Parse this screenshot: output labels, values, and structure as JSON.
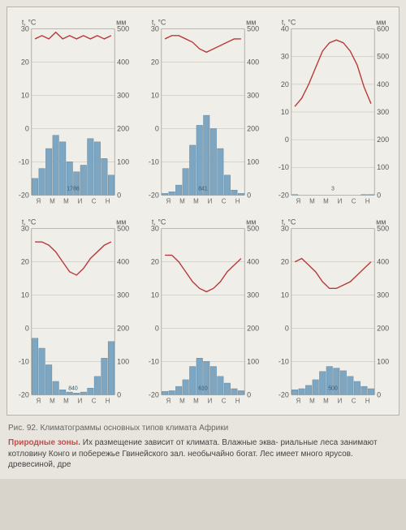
{
  "figure": {
    "caption": "Рис. 92. Климатограммы основных типов климата Африки",
    "body_title": "Природные зоны.",
    "body_text": " Их размещение зависит от климата. Влажные эква-  риальные леса занимают котловину Конго и побережье Гвинейского зал.                                  необычайно богат. Лес имеет много ярусов.                                                                                         древесиной, дре",
    "bg": "#f0eee8",
    "line_color": "#b83a3a",
    "bar_color": "#7da6c2",
    "bar_stroke": "#5a7a90",
    "grid_color": "#b0aca0",
    "axis_color": "#888478",
    "months": [
      "Я",
      "М",
      "М",
      "И",
      "С",
      "Н"
    ],
    "charts": [
      {
        "t_label": "t, °C",
        "mm_label": "мм",
        "t_ticks": [
          -20,
          -10,
          0,
          10,
          20,
          30
        ],
        "mm_ticks": [
          0,
          100,
          200,
          300,
          400,
          500
        ],
        "temp": [
          27,
          28,
          27,
          29,
          27,
          28,
          27,
          28,
          27,
          28,
          27,
          28
        ],
        "precip": [
          50,
          80,
          140,
          180,
          160,
          100,
          70,
          90,
          170,
          160,
          110,
          60
        ],
        "inside_label": "1786"
      },
      {
        "t_label": "t, °C",
        "mm_label": "мм",
        "t_ticks": [
          -20,
          -10,
          0,
          10,
          20,
          30
        ],
        "mm_ticks": [
          0,
          100,
          200,
          300,
          400,
          500
        ],
        "temp": [
          27,
          28,
          28,
          27,
          26,
          24,
          23,
          24,
          25,
          26,
          27,
          27
        ],
        "precip": [
          5,
          10,
          30,
          80,
          150,
          210,
          240,
          200,
          140,
          60,
          15,
          5
        ],
        "inside_label": "841"
      },
      {
        "t_label": "t, °C",
        "mm_label": "мм",
        "t_ticks": [
          -20,
          -10,
          0,
          10,
          20,
          30,
          40
        ],
        "mm_ticks": [
          0,
          100,
          200,
          300,
          400,
          500,
          600
        ],
        "temp": [
          12,
          15,
          20,
          26,
          32,
          35,
          36,
          35,
          32,
          27,
          19,
          13
        ],
        "precip": [
          2,
          1,
          1,
          0,
          0,
          0,
          0,
          0,
          0,
          1,
          2,
          2
        ],
        "inside_label": "3",
        "t_max": 40,
        "mm_max": 600
      },
      {
        "t_label": "t, °C",
        "mm_label": "мм",
        "t_ticks": [
          -20,
          -10,
          0,
          10,
          20,
          30
        ],
        "mm_ticks": [
          0,
          100,
          200,
          300,
          400,
          500
        ],
        "temp": [
          26,
          26,
          25,
          23,
          20,
          17,
          16,
          18,
          21,
          23,
          25,
          26
        ],
        "precip": [
          170,
          140,
          90,
          40,
          15,
          8,
          5,
          8,
          20,
          55,
          110,
          160
        ],
        "inside_label": "840"
      },
      {
        "t_label": "t, °C",
        "mm_label": "мм",
        "t_ticks": [
          -20,
          -10,
          0,
          10,
          20,
          30
        ],
        "mm_ticks": [
          0,
          100,
          200,
          300,
          400,
          500
        ],
        "temp": [
          22,
          22,
          20,
          17,
          14,
          12,
          11,
          12,
          14,
          17,
          19,
          21
        ],
        "precip": [
          10,
          12,
          25,
          45,
          85,
          110,
          100,
          85,
          55,
          35,
          18,
          12
        ],
        "inside_label": "610"
      },
      {
        "t_label": "t, °C",
        "mm_label": "мм",
        "t_ticks": [
          -20,
          -10,
          0,
          10,
          20,
          30
        ],
        "mm_ticks": [
          0,
          100,
          200,
          300,
          400,
          500
        ],
        "temp": [
          20,
          21,
          19,
          17,
          14,
          12,
          12,
          13,
          14,
          16,
          18,
          20
        ],
        "precip": [
          15,
          18,
          28,
          45,
          70,
          85,
          80,
          72,
          55,
          40,
          25,
          18
        ],
        "inside_label": "500"
      }
    ]
  }
}
